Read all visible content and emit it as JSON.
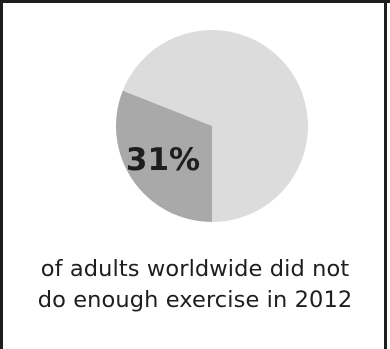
{
  "colors": {
    "frame": "#1e1e1e",
    "background": "#ffffff",
    "slice_major": "#dcdcdc",
    "slice_minor": "#a9a9a9",
    "text": "#1e1e1e"
  },
  "chart_data": {
    "type": "pie",
    "title": "",
    "slices": [
      {
        "value": 31,
        "color": "#a9a9a9"
      },
      {
        "value": 69,
        "color": "#dcdcdc"
      }
    ],
    "data_labels": [
      "31%"
    ]
  },
  "caption": {
    "line1": "of adults worldwide did not",
    "line2": "do enough exercise in 2012"
  }
}
